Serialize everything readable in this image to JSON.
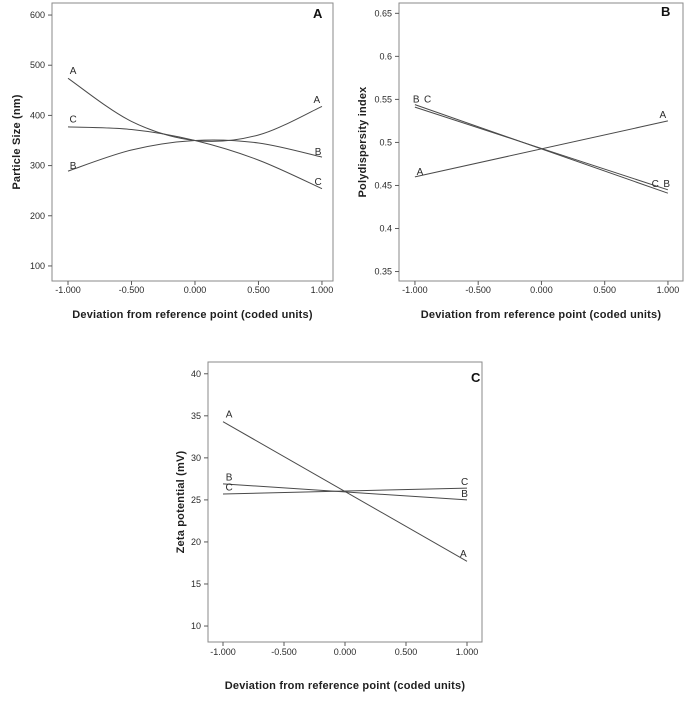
{
  "figure": {
    "background": "#ffffff",
    "frame_color": "#8a8a8a",
    "tick_color": "#5a5a5a",
    "line_color": "#4a4a4a",
    "text_color": "#2a2a2a"
  },
  "chart_data": [
    {
      "panel": "A",
      "type": "line",
      "title": "",
      "xlabel": "Deviation from reference point (coded units)",
      "ylabel": "Particle Size (nm)",
      "xlim": [
        -1.126,
        1.087
      ],
      "ylim": [
        70,
        624
      ],
      "grid": false,
      "legend": "inline letter labels at curve ends",
      "xticks": [
        -1.0,
        -0.5,
        0.0,
        0.5,
        1.0
      ],
      "xtick_labels": [
        "-1.000",
        "-0.500",
        "0.000",
        "0.500",
        "1.000"
      ],
      "yticks": [
        100,
        200,
        300,
        400,
        500,
        600
      ],
      "ytick_labels": [
        "100",
        "200",
        "300",
        "400",
        "500",
        "600"
      ],
      "series": [
        {
          "name": "A",
          "x": [
            -1,
            -0.5,
            0,
            0.5,
            1
          ],
          "y": [
            474,
            388,
            350,
            361,
            418
          ]
        },
        {
          "name": "B",
          "x": [
            -1,
            -0.5,
            0,
            0.5,
            1
          ],
          "y": [
            289,
            331,
            350,
            345,
            317
          ]
        },
        {
          "name": "C",
          "x": [
            -1,
            -0.5,
            0,
            0.5,
            1
          ],
          "y": [
            377,
            372,
            350,
            311,
            254
          ]
        }
      ],
      "labels": [
        {
          "text": "A",
          "x": -0.96,
          "y": 489
        },
        {
          "text": "C",
          "x": -0.96,
          "y": 393
        },
        {
          "text": "B",
          "x": -0.96,
          "y": 300
        },
        {
          "text": "A",
          "x": 0.96,
          "y": 432
        },
        {
          "text": "B",
          "x": 0.97,
          "y": 328
        },
        {
          "text": "C",
          "x": 0.97,
          "y": 268
        }
      ]
    },
    {
      "panel": "B",
      "type": "line",
      "title": "",
      "xlabel": "Deviation from reference point (coded units)",
      "ylabel": "Polydispersity index",
      "xlim": [
        -1.126,
        1.119
      ],
      "ylim": [
        0.339,
        0.662
      ],
      "grid": false,
      "legend": "inline letter labels at curve ends",
      "xticks": [
        -1.0,
        -0.5,
        0.0,
        0.5,
        1.0
      ],
      "xtick_labels": [
        "-1.000",
        "-0.500",
        "0.000",
        "0.500",
        "1.000"
      ],
      "yticks": [
        0.35,
        0.4,
        0.45,
        0.5,
        0.55,
        0.6,
        0.65
      ],
      "ytick_labels": [
        "0.35",
        "0.4",
        "0.45",
        "0.5",
        "0.55",
        "0.6",
        "0.65"
      ],
      "series": [
        {
          "name": "A",
          "x": [
            -1,
            1
          ],
          "y": [
            0.46,
            0.525
          ]
        },
        {
          "name": "B",
          "x": [
            -1,
            1
          ],
          "y": [
            0.544,
            0.441
          ]
        },
        {
          "name": "C",
          "x": [
            -1,
            1
          ],
          "y": [
            0.541,
            0.445
          ]
        }
      ],
      "labels": [
        {
          "text": "B",
          "x": -0.99,
          "y": 0.5505
        },
        {
          "text": "C",
          "x": -0.9,
          "y": 0.5505
        },
        {
          "text": "A",
          "x": -0.96,
          "y": 0.4665
        },
        {
          "text": "A",
          "x": 0.96,
          "y": 0.5325
        },
        {
          "text": "C",
          "x": 0.9,
          "y": 0.4525
        },
        {
          "text": "B",
          "x": 0.99,
          "y": 0.4525
        }
      ]
    },
    {
      "panel": "C",
      "type": "line",
      "title": "",
      "xlabel": "Deviation from reference point (coded units)",
      "ylabel": "Zeta potential (mV)",
      "xlim": [
        -1.123,
        1.123
      ],
      "ylim": [
        8.1,
        41.4
      ],
      "grid": false,
      "legend": "inline letter labels at curve ends",
      "xticks": [
        -1.0,
        -0.5,
        0.0,
        0.5,
        1.0
      ],
      "xtick_labels": [
        "-1.000",
        "-0.500",
        "0.000",
        "0.500",
        "1.000"
      ],
      "yticks": [
        10,
        15,
        20,
        25,
        30,
        35,
        40
      ],
      "ytick_labels": [
        "10",
        "15",
        "20",
        "25",
        "30",
        "35",
        "40"
      ],
      "series": [
        {
          "name": "A",
          "x": [
            -1,
            1
          ],
          "y": [
            34.3,
            17.7
          ]
        },
        {
          "name": "B",
          "x": [
            -1,
            1
          ],
          "y": [
            26.9,
            25.0
          ]
        },
        {
          "name": "C",
          "x": [
            -1,
            1
          ],
          "y": [
            25.7,
            26.4
          ]
        }
      ],
      "labels": [
        {
          "text": "A",
          "x": -0.95,
          "y": 35.2
        },
        {
          "text": "B",
          "x": -0.95,
          "y": 27.7
        },
        {
          "text": "C",
          "x": -0.95,
          "y": 26.55
        },
        {
          "text": "C",
          "x": 0.98,
          "y": 27.2
        },
        {
          "text": "B",
          "x": 0.98,
          "y": 25.75
        },
        {
          "text": "A",
          "x": 0.97,
          "y": 18.6
        }
      ]
    }
  ]
}
